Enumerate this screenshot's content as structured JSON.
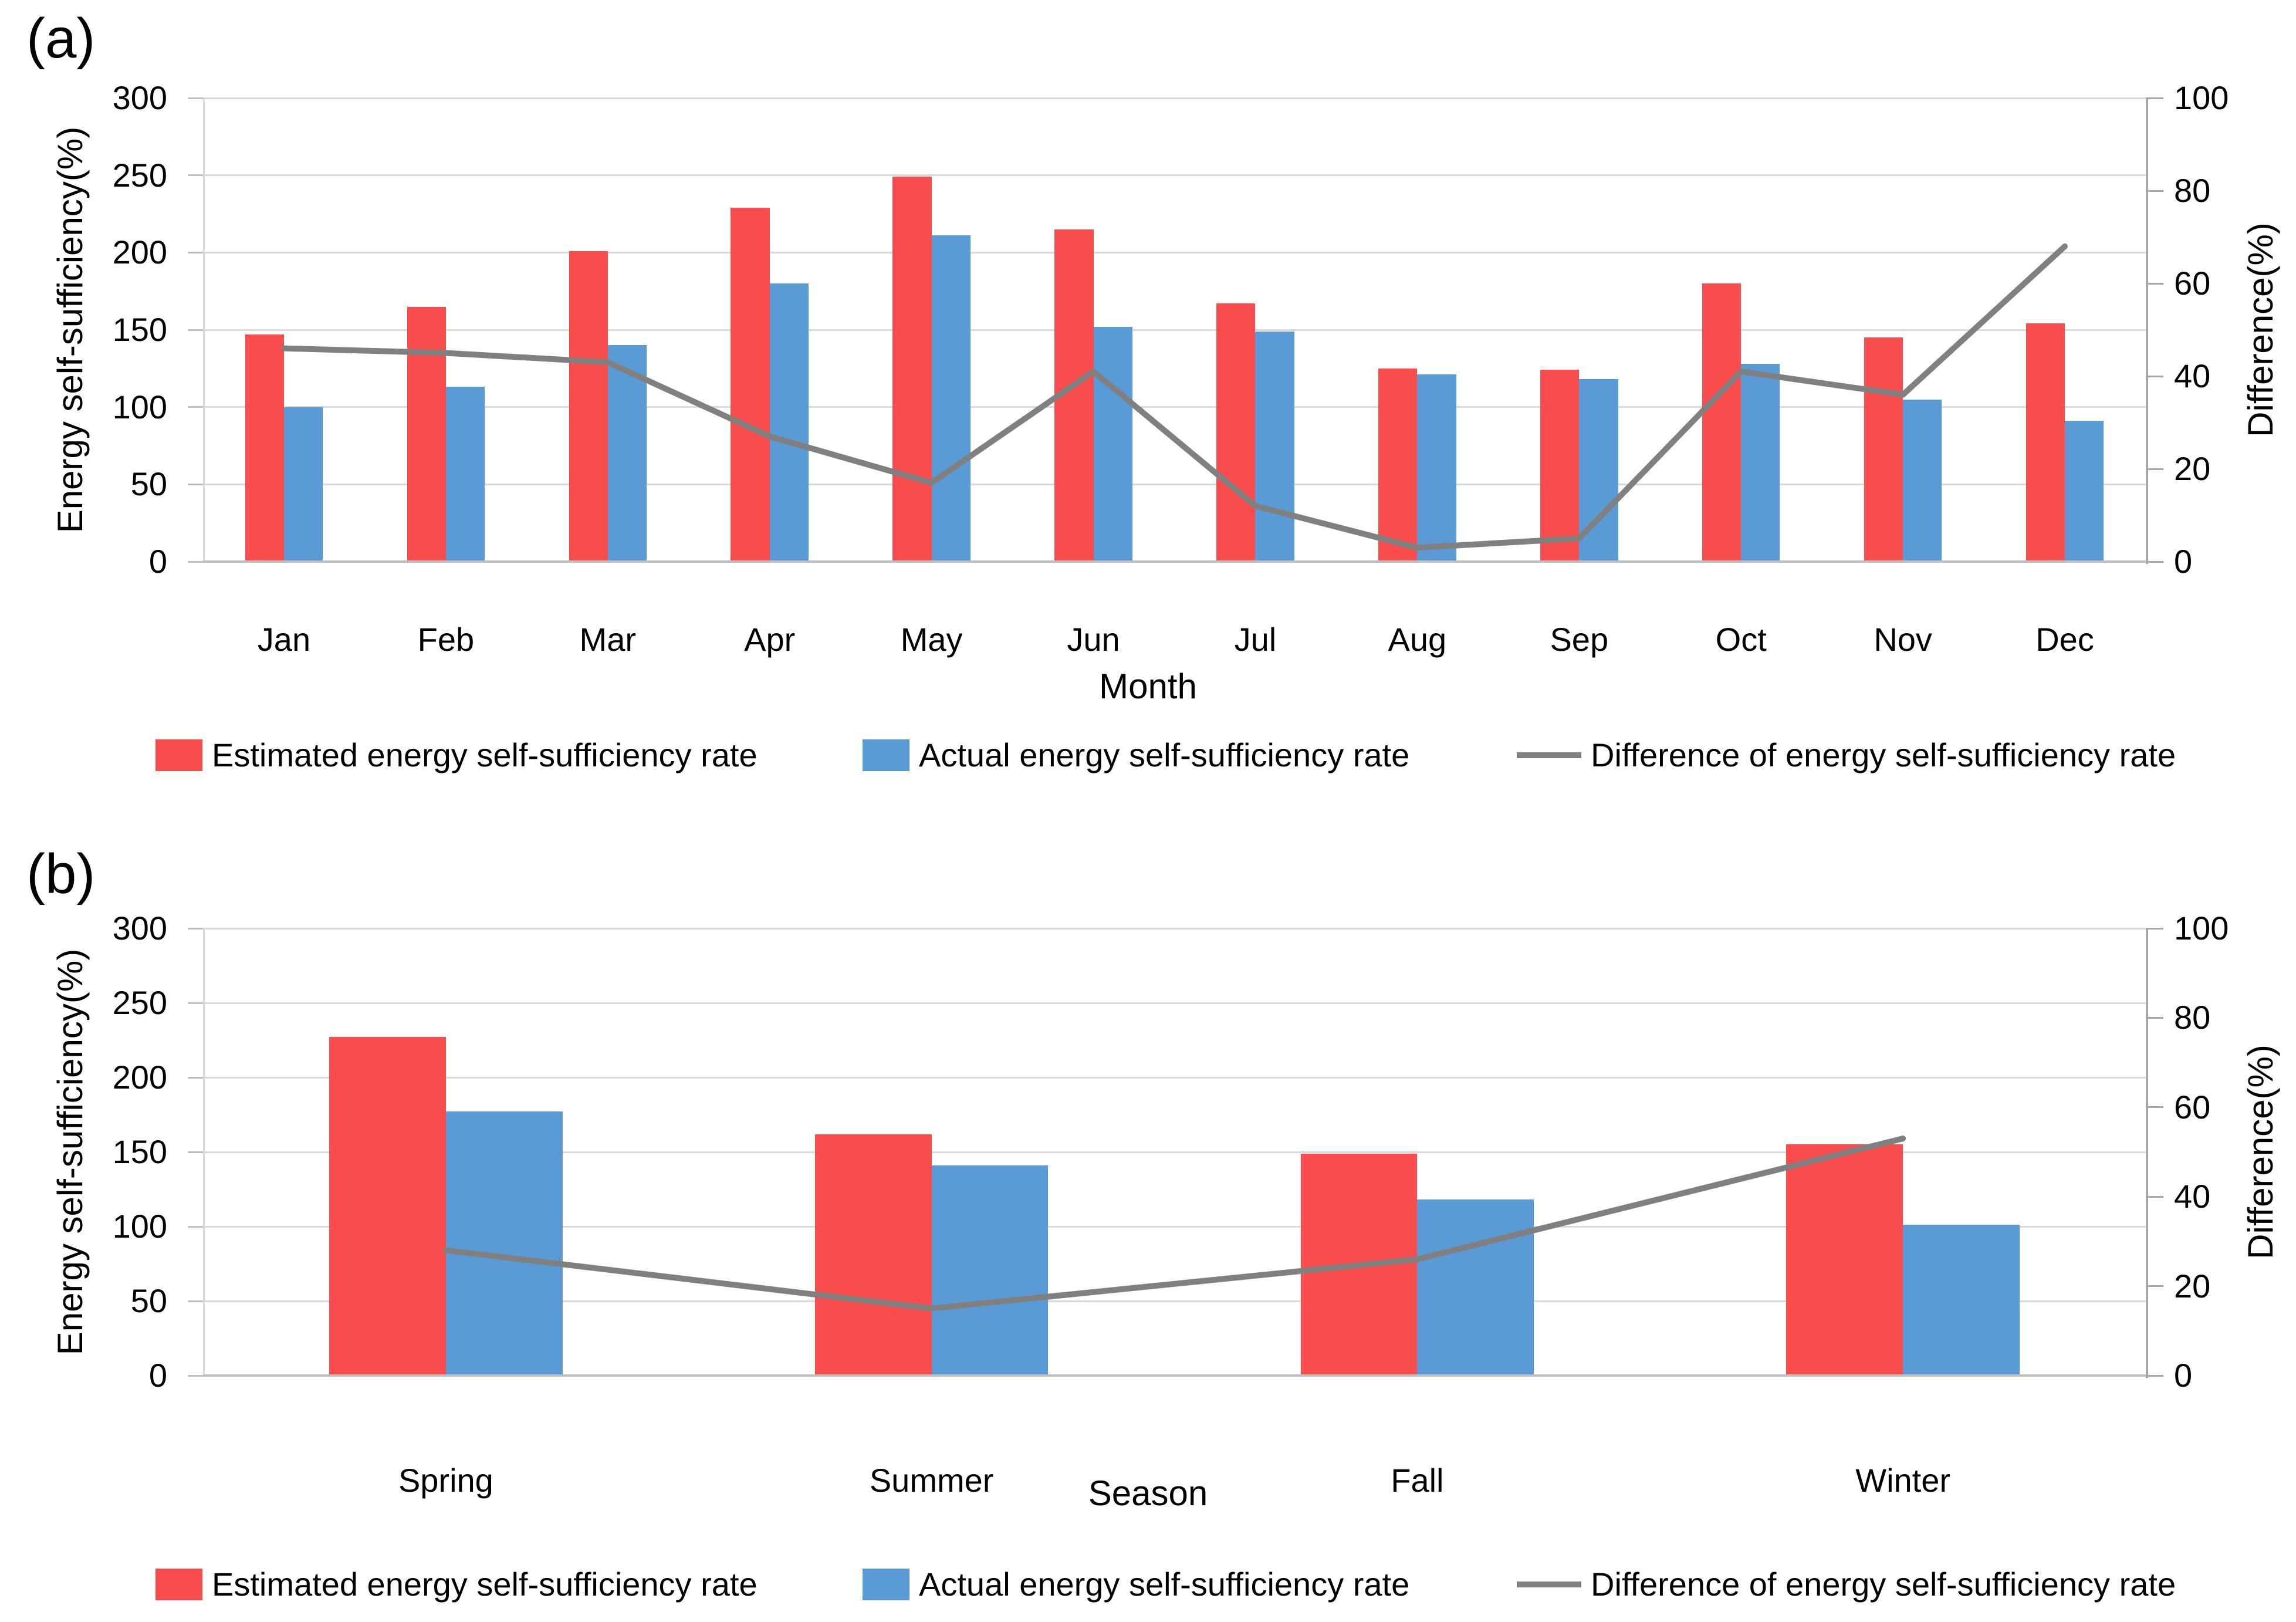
{
  "page_background": "#ffffff",
  "colors": {
    "estimated": "#F94D4D",
    "actual": "#5B9BD5",
    "difference": "#808080",
    "gridline": "#D9D9D9",
    "axis_light": "#BFBFBF",
    "axis_dark": "#A6A6A6",
    "text": "#000000"
  },
  "chart_data": [
    {
      "id": "a",
      "type": "bar+line",
      "panel_label": "(a)",
      "xlabel": "Month",
      "ylabel_left": "Energy self-sufficiency(%)",
      "ylabel_right": "Difference(%)",
      "ylim_left": [
        0,
        300
      ],
      "left_ticks": [
        0,
        50,
        100,
        150,
        200,
        250,
        300
      ],
      "ylim_right": [
        0,
        100
      ],
      "right_ticks": [
        0,
        20,
        40,
        60,
        80,
        100
      ],
      "grid": true,
      "legend_position": "bottom",
      "categories": [
        "Jan",
        "Feb",
        "Mar",
        "Apr",
        "May",
        "Jun",
        "Jul",
        "Aug",
        "Sep",
        "Oct",
        "Nov",
        "Dec"
      ],
      "series": [
        {
          "name": "Estimated energy self-sufficiency rate",
          "type": "bar",
          "axis": "left",
          "color": "#F94D4D",
          "values": [
            147,
            165,
            201,
            229,
            249,
            215,
            167,
            125,
            124,
            180,
            145,
            154
          ]
        },
        {
          "name": "Actual energy self-sufficiency rate",
          "type": "bar",
          "axis": "left",
          "color": "#5B9BD5",
          "values": [
            100,
            113,
            140,
            180,
            211,
            152,
            149,
            121,
            118,
            128,
            105,
            91
          ]
        },
        {
          "name": "Difference of energy self-sufficiency rate",
          "type": "line",
          "axis": "right",
          "color": "#808080",
          "values": [
            46,
            45,
            43,
            27,
            17,
            41,
            12,
            3,
            5,
            41,
            36,
            68
          ]
        }
      ]
    },
    {
      "id": "b",
      "type": "bar+line",
      "panel_label": "(b)",
      "xlabel": "Season",
      "ylabel_left": "Energy self-sufficiency(%)",
      "ylabel_right": "Difference(%)",
      "ylim_left": [
        0,
        300
      ],
      "left_ticks": [
        0,
        50,
        100,
        150,
        200,
        250,
        300
      ],
      "ylim_right": [
        0,
        100
      ],
      "right_ticks": [
        0,
        20,
        40,
        60,
        80,
        100
      ],
      "grid": true,
      "legend_position": "bottom",
      "categories": [
        "Spring",
        "Summer",
        "Fall",
        "Winter"
      ],
      "series": [
        {
          "name": "Estimated energy self-sufficiency rate",
          "type": "bar",
          "axis": "left",
          "color": "#F94D4D",
          "values": [
            227,
            162,
            149,
            155
          ]
        },
        {
          "name": "Actual energy self-sufficiency rate",
          "type": "bar",
          "axis": "left",
          "color": "#5B9BD5",
          "values": [
            177,
            141,
            118,
            101
          ]
        },
        {
          "name": "Difference of energy self-sufficiency rate",
          "type": "line",
          "axis": "right",
          "color": "#808080",
          "values": [
            28,
            15,
            26,
            53
          ]
        }
      ]
    }
  ]
}
